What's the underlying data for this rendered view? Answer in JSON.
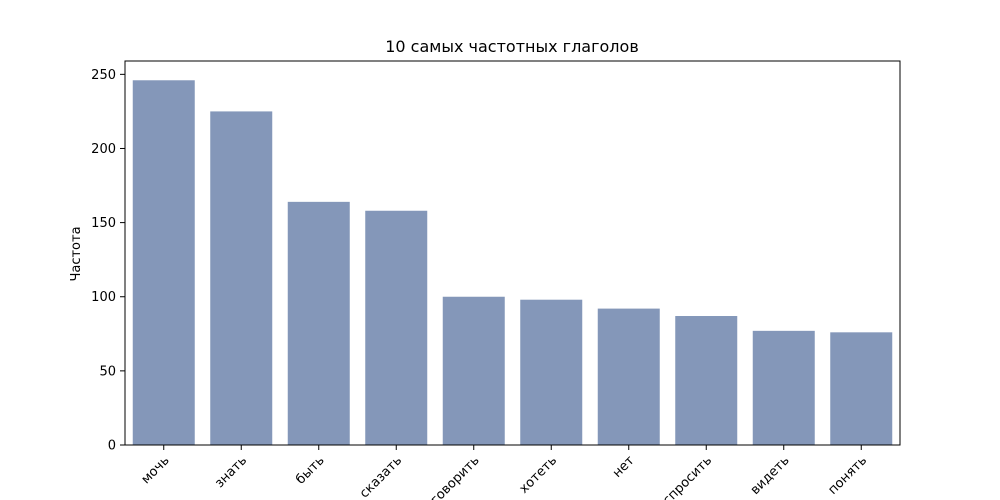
{
  "chart_data": {
    "type": "bar",
    "title": "10 самых частотных глаголов",
    "xlabel": "",
    "ylabel": "Частота",
    "categories": [
      "мочь",
      "знать",
      "быть",
      "сказать",
      "говорить",
      "хотеть",
      "нет",
      "спросить",
      "видеть",
      "понять"
    ],
    "values": [
      246,
      225,
      164,
      158,
      100,
      98,
      92,
      87,
      77,
      76
    ],
    "ylim": [
      0,
      259
    ],
    "yticks": [
      0,
      50,
      100,
      150,
      200,
      250
    ],
    "ytick_labels": [
      "0",
      "50",
      "100",
      "150",
      "200",
      "250"
    ],
    "bar_color": "#8497b9",
    "grid": false,
    "legend": "none"
  }
}
